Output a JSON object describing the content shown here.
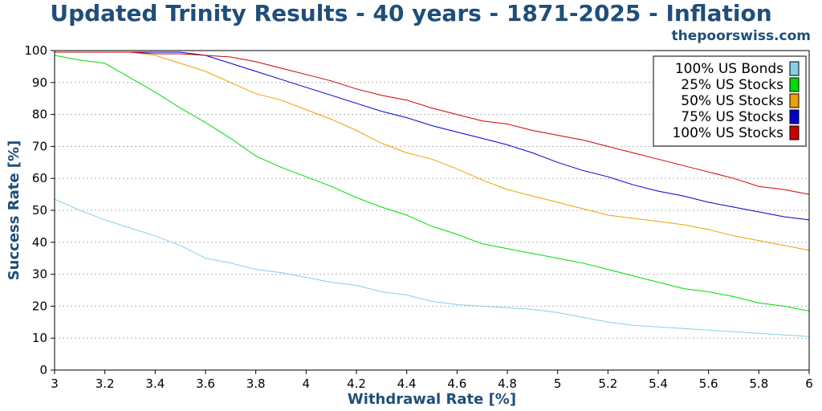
{
  "chart_data": {
    "type": "line",
    "title": "Updated Trinity Results - 40 years - 1871-2025 - Inflation",
    "source": "thepoorswiss.com",
    "xlabel": "Withdrawal Rate [%]",
    "ylabel": "Success Rate [%]",
    "xlim": [
      3,
      6
    ],
    "ylim": [
      0,
      100
    ],
    "xticks": [
      3,
      3.2,
      3.4,
      3.6,
      3.8,
      4,
      4.2,
      4.4,
      4.6,
      4.8,
      5,
      5.2,
      5.4,
      5.6,
      5.8,
      6
    ],
    "yticks": [
      0,
      10,
      20,
      30,
      40,
      50,
      60,
      70,
      80,
      90,
      100
    ],
    "grid": "horizontal-dotted",
    "legend_position": "top-right",
    "x": [
      3,
      3.1,
      3.2,
      3.3,
      3.4,
      3.5,
      3.6,
      3.7,
      3.8,
      3.9,
      4,
      4.1,
      4.2,
      4.3,
      4.4,
      4.5,
      4.6,
      4.7,
      4.8,
      4.9,
      5,
      5.1,
      5.2,
      5.3,
      5.4,
      5.5,
      5.6,
      5.7,
      5.8,
      5.9,
      6
    ],
    "series": [
      {
        "name": "100% US Bonds",
        "color": "#87ceeb",
        "values": [
          53.5,
          50,
          47,
          44.5,
          42,
          39,
          35,
          33.5,
          31.5,
          30.5,
          29,
          27.5,
          26.5,
          24.5,
          23.5,
          21.5,
          20.5,
          20,
          19.5,
          19,
          18,
          16.5,
          15,
          14,
          13.5,
          13,
          12.5,
          12,
          11.5,
          11,
          10.5
        ]
      },
      {
        "name": "25% US Stocks",
        "color": "#00dd00",
        "values": [
          98.5,
          97,
          96,
          91.5,
          87,
          82,
          77.5,
          72.5,
          67,
          63.5,
          60.5,
          57.5,
          54,
          51,
          48.5,
          45,
          42.5,
          39.5,
          38,
          36.5,
          35,
          33.5,
          31.5,
          29.5,
          27.5,
          25.5,
          24.5,
          23,
          21,
          20,
          18.5
        ]
      },
      {
        "name": "50% US Stocks",
        "color": "#f0a000",
        "values": [
          99.5,
          99.5,
          99.5,
          99.5,
          98.5,
          96,
          93.5,
          90,
          86.5,
          84.5,
          81.5,
          78.5,
          75,
          71,
          68,
          66,
          63,
          59.5,
          56.5,
          54.5,
          52.5,
          50.5,
          48.5,
          47.5,
          46.5,
          45.5,
          44,
          42,
          40.5,
          39,
          37.5
        ]
      },
      {
        "name": "75% US Stocks",
        "color": "#0000cc",
        "values": [
          99.5,
          99.5,
          99.5,
          99.5,
          99.5,
          99.5,
          98.5,
          96,
          93.5,
          91,
          88.5,
          86,
          83.5,
          81,
          79,
          76.5,
          74.5,
          72.5,
          70.5,
          68,
          65,
          62.5,
          60.5,
          58,
          56,
          54.5,
          52.5,
          51,
          49.5,
          48,
          47
        ]
      },
      {
        "name": "100% US Stocks",
        "color": "#cc0000",
        "values": [
          99.5,
          99.5,
          99.5,
          99.5,
          99,
          99,
          98.5,
          98,
          96.5,
          94.5,
          92.5,
          90.5,
          88,
          86,
          84.5,
          82,
          80,
          78,
          77,
          75,
          73.5,
          72,
          70,
          68,
          66,
          64,
          62,
          60,
          57.5,
          56.5,
          55
        ]
      }
    ]
  }
}
